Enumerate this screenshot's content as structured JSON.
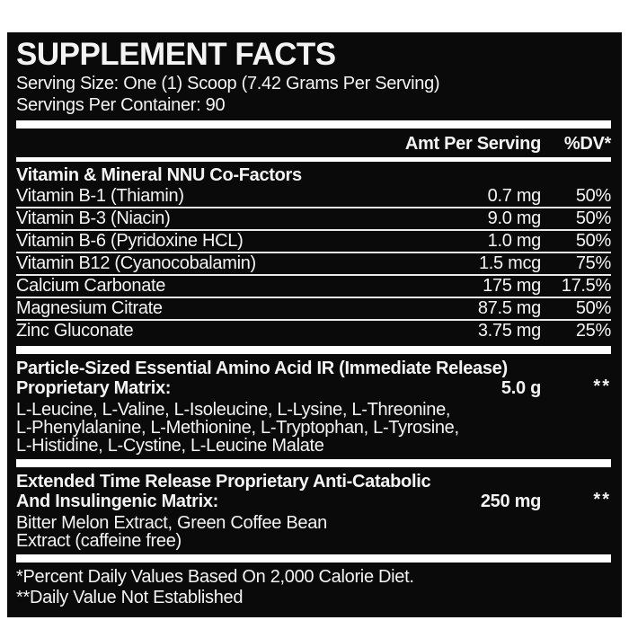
{
  "colors": {
    "panel_bg": "#0a0a0a",
    "text": "#f4f4f4",
    "divider": "#e9e9e9",
    "bar": "#ffffff",
    "page_bg": "#ffffff"
  },
  "label": {
    "title": "SUPPLEMENT FACTS",
    "serving_size": "Serving Size: One (1) Scoop (7.42 Grams Per Serving)",
    "servings_per_container": "Servings Per Container: 90",
    "columns": {
      "amount": "Amt Per Serving",
      "dv": "%DV*"
    },
    "cofactors": {
      "header": "Vitamin & Mineral NNU Co-Factors",
      "rows": [
        {
          "name": "Vitamin B-1 (Thiamin)",
          "amount": "0.7 mg",
          "dv": "50%"
        },
        {
          "name": "Vitamin B-3 (Niacin)",
          "amount": "9.0 mg",
          "dv": "50%"
        },
        {
          "name": "Vitamin B-6 (Pyridoxine HCL)",
          "amount": "1.0 mg",
          "dv": "50%"
        },
        {
          "name": "Vitamin B12 (Cyanocobalamin)",
          "amount": "1.5 mcg",
          "dv": "75%"
        },
        {
          "name": "Calcium Carbonate",
          "amount": "175 mg",
          "dv": "17.5%"
        },
        {
          "name": "Magnesium Citrate",
          "amount": "87.5 mg",
          "dv": "50%"
        },
        {
          "name": "Zinc Gluconate",
          "amount": "3.75 mg",
          "dv": "25%"
        }
      ]
    },
    "matrices": [
      {
        "name_lines": [
          "Particle-Sized Essential Amino Acid IR (Immediate Release)",
          "Proprietary Matrix:"
        ],
        "amount": "5.0 g",
        "dv": "**",
        "ingredient_lines": [
          "L-Leucine, L-Valine, L-Isoleucine, L-Lysine, L-Threonine,",
          "L-Phenylalanine, L-Methionine, L-Tryptophan, L-Tyrosine,",
          "L-Histidine, L-Cystine, L-Leucine Malate"
        ]
      },
      {
        "name_lines": [
          "Extended Time Release Proprietary Anti-Catabolic",
          "And Insulingenic Matrix:"
        ],
        "amount": "250 mg",
        "dv": "**",
        "ingredient_lines": [
          "Bitter Melon Extract, Green Coffee Bean",
          "Extract (caffeine free)"
        ]
      }
    ],
    "footnotes": [
      "*Percent Daily Values Based On 2,000 Calorie Diet.",
      "**Daily Value Not Established"
    ]
  }
}
